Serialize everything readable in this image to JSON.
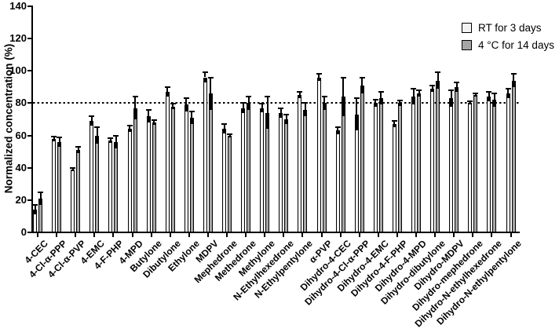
{
  "chart_data": {
    "type": "bar",
    "title": "",
    "xlabel": "",
    "ylabel": "Normalized concentration (%)",
    "ylim": [
      0,
      140
    ],
    "yticks": [
      0,
      20,
      40,
      60,
      80,
      100,
      120,
      140
    ],
    "reference_line": 80,
    "grid": false,
    "legend_position": "top-right",
    "bar_outline_color": "#000000",
    "error_bar_color": "#000000",
    "categories": [
      "4-CEC",
      "4-Cl-α-PPP",
      "4-Cl-α-PVP",
      "4-EMC",
      "4-F-PHP",
      "4-MPD",
      "Butylone",
      "Dibutylone",
      "Ethylone",
      "MDPV",
      "Mephedrone",
      "Methedrone",
      "Methylone",
      "N-Ethylhexedrone",
      "N-Ethylpentylone",
      "α-PVP",
      "Dihydro-4-CEC",
      "Dihydro-4-Cl-α-PPP",
      "Dihydro-4-EMC",
      "Dihydro-4-F-PHP",
      "Dihydro-4-MPD",
      "Dihydro-dibutylone",
      "Dihydro-MDPV",
      "Dihydro-mephedrone",
      "Dihydro-N-ethylhexedrone",
      "Dihydro-N-ethylpentylone"
    ],
    "series": [
      {
        "name": "RT for 3 days",
        "color": "#f2f2f2",
        "values": [
          14,
          58,
          39,
          69,
          57,
          64,
          72,
          87,
          79,
          96,
          64,
          77,
          77,
          74,
          85,
          96,
          63,
          73,
          80,
          67,
          84,
          89,
          83,
          80,
          84,
          86
        ],
        "errors": [
          3,
          1.5,
          1,
          3,
          1.5,
          2,
          4,
          3,
          4,
          3,
          3,
          3,
          2.5,
          3,
          2,
          2,
          2,
          10,
          2,
          2,
          5,
          2,
          5,
          1,
          3,
          3
        ]
      },
      {
        "name": "4 °C for 14 days",
        "color": "#a6a6a6",
        "values": [
          21,
          56,
          51,
          60,
          56,
          77,
          68,
          78,
          71,
          86,
          60,
          80,
          74,
          70,
          76,
          80,
          84,
          91,
          83,
          80,
          86,
          94,
          90,
          85,
          82,
          94
        ],
        "errors": [
          4,
          3,
          2,
          5,
          4,
          7,
          1.5,
          1.5,
          4,
          10,
          1,
          4,
          10,
          3,
          4,
          4,
          12,
          5,
          4,
          1.5,
          2,
          5,
          3,
          1,
          4,
          4
        ]
      }
    ]
  }
}
